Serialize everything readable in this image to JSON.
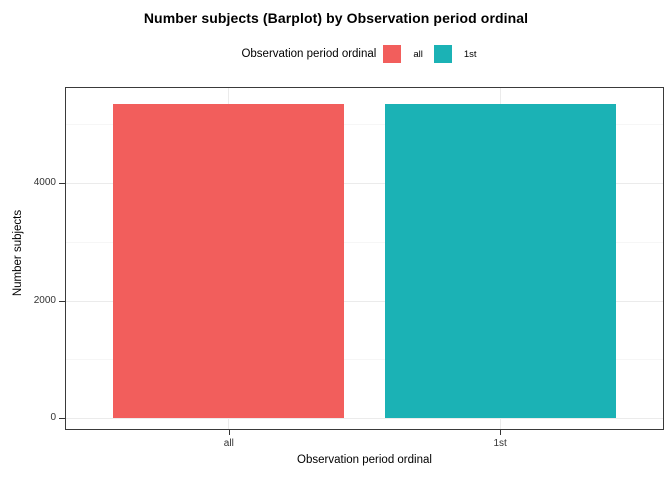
{
  "chart_data": {
    "type": "bar",
    "title": "Number subjects (Barplot) by Observation period ordinal",
    "categories": [
      "all",
      "1st"
    ],
    "values": [
      5345,
      5345
    ],
    "colors": [
      "#F25E5C",
      "#1BB2B5"
    ],
    "xlabel": "Observation period ordinal",
    "ylabel": "Number subjects",
    "ylim": [
      0,
      5620
    ],
    "yticks_major": [
      0,
      2000,
      4000
    ],
    "yticks_minor": [
      1000,
      3000,
      5000
    ],
    "grid": true,
    "bar_width_frac": 0.85,
    "legend": {
      "title": "Observation period ordinal",
      "position": "top",
      "items": [
        {
          "label": "all",
          "color": "#F25E5C"
        },
        {
          "label": "1st",
          "color": "#1BB2B5"
        }
      ]
    }
  },
  "colors": {
    "background": "#FFFFFF",
    "panel_border": "#3A3A3A",
    "grid_major": "#EBEBEB",
    "grid_minor": "#F6F6F6",
    "axis_text": "#333333",
    "text": "#000000"
  }
}
